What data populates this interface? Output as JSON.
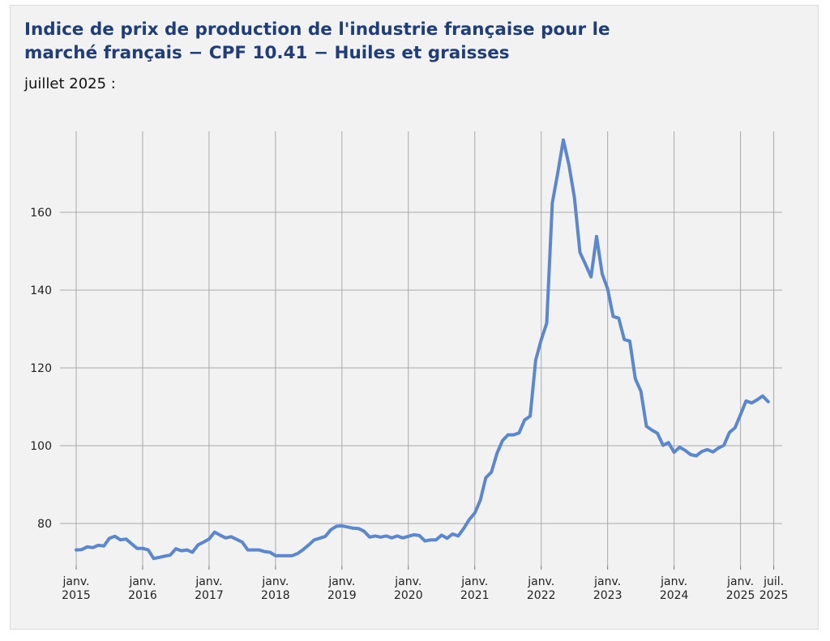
{
  "header": {
    "title": "Indice de prix de production de l'industrie française pour le marché français − CPF 10.41 − Huiles et graisses",
    "subtitle": "juillet 2025 :"
  },
  "chart_data": {
    "type": "line",
    "title": "Indice de prix de production de l'industrie française pour le marché français − CPF 10.41 − Huiles et graisses",
    "subtitle": "juillet 2025 :",
    "xlabel": "",
    "ylabel": "",
    "ylim": [
      68,
      170
    ],
    "y_ticks": [
      80,
      100,
      120,
      140,
      160
    ],
    "x_ticks": [
      {
        "date": "2015-01",
        "line1": "janv.",
        "line2": "2015"
      },
      {
        "date": "2016-01",
        "line1": "janv.",
        "line2": "2016"
      },
      {
        "date": "2017-01",
        "line1": "janv.",
        "line2": "2017"
      },
      {
        "date": "2018-01",
        "line1": "janv.",
        "line2": "2018"
      },
      {
        "date": "2019-01",
        "line1": "janv.",
        "line2": "2019"
      },
      {
        "date": "2020-01",
        "line1": "janv.",
        "line2": "2020"
      },
      {
        "date": "2021-01",
        "line1": "janv.",
        "line2": "2021"
      },
      {
        "date": "2022-01",
        "line1": "janv.",
        "line2": "2022"
      },
      {
        "date": "2023-01",
        "line1": "janv.",
        "line2": "2023"
      },
      {
        "date": "2024-01",
        "line1": "janv.",
        "line2": "2024"
      },
      {
        "date": "2025-01",
        "line1": "janv.",
        "line2": "2025"
      },
      {
        "date": "2025-07",
        "line1": "juil.",
        "line2": "2025"
      }
    ],
    "grid": true,
    "line_color": "#5b87d0",
    "series": [
      {
        "name": "",
        "points": [
          [
            "2015-01",
            73.2
          ],
          [
            "2015-02",
            73.3
          ],
          [
            "2015-03",
            74.0
          ],
          [
            "2015-04",
            73.8
          ],
          [
            "2015-05",
            74.4
          ],
          [
            "2015-06",
            74.2
          ],
          [
            "2015-07",
            76.2
          ],
          [
            "2015-08",
            76.7
          ],
          [
            "2015-09",
            75.8
          ],
          [
            "2015-10",
            76.0
          ],
          [
            "2015-11",
            74.8
          ],
          [
            "2015-12",
            73.6
          ],
          [
            "2016-01",
            73.6
          ],
          [
            "2016-02",
            73.2
          ],
          [
            "2016-03",
            71.0
          ],
          [
            "2016-04",
            71.3
          ],
          [
            "2016-05",
            71.6
          ],
          [
            "2016-06",
            71.9
          ],
          [
            "2016-07",
            73.5
          ],
          [
            "2016-08",
            73.0
          ],
          [
            "2016-09",
            73.2
          ],
          [
            "2016-10",
            72.6
          ],
          [
            "2016-11",
            74.5
          ],
          [
            "2016-12",
            75.2
          ],
          [
            "2017-01",
            76.0
          ],
          [
            "2017-02",
            77.8
          ],
          [
            "2017-03",
            77.0
          ],
          [
            "2017-04",
            76.3
          ],
          [
            "2017-05",
            76.6
          ],
          [
            "2017-06",
            75.9
          ],
          [
            "2017-07",
            75.2
          ],
          [
            "2017-08",
            73.2
          ],
          [
            "2017-09",
            73.2
          ],
          [
            "2017-10",
            73.2
          ],
          [
            "2017-11",
            72.8
          ],
          [
            "2017-12",
            72.6
          ],
          [
            "2018-01",
            71.7
          ],
          [
            "2018-02",
            71.7
          ],
          [
            "2018-03",
            71.7
          ],
          [
            "2018-04",
            71.7
          ],
          [
            "2018-05",
            72.3
          ],
          [
            "2018-06",
            73.3
          ],
          [
            "2018-07",
            74.5
          ],
          [
            "2018-08",
            75.8
          ],
          [
            "2018-09",
            76.2
          ],
          [
            "2018-10",
            76.7
          ],
          [
            "2018-11",
            78.4
          ],
          [
            "2018-12",
            79.3
          ],
          [
            "2019-01",
            79.4
          ],
          [
            "2019-02",
            79.1
          ],
          [
            "2019-03",
            78.8
          ],
          [
            "2019-04",
            78.7
          ],
          [
            "2019-05",
            78.0
          ],
          [
            "2019-06",
            76.5
          ],
          [
            "2019-07",
            76.8
          ],
          [
            "2019-08",
            76.5
          ],
          [
            "2019-09",
            76.8
          ],
          [
            "2019-10",
            76.3
          ],
          [
            "2019-11",
            76.8
          ],
          [
            "2019-12",
            76.3
          ],
          [
            "2020-01",
            76.7
          ],
          [
            "2020-02",
            77.1
          ],
          [
            "2020-03",
            76.9
          ],
          [
            "2020-04",
            75.5
          ],
          [
            "2020-05",
            75.8
          ],
          [
            "2020-06",
            75.8
          ],
          [
            "2020-07",
            77.0
          ],
          [
            "2020-08",
            76.2
          ],
          [
            "2020-09",
            77.3
          ],
          [
            "2020-10",
            76.8
          ],
          [
            "2020-11",
            78.7
          ],
          [
            "2020-12",
            81.0
          ],
          [
            "2021-01",
            82.7
          ],
          [
            "2021-02",
            86.0
          ],
          [
            "2021-03",
            91.8
          ],
          [
            "2021-04",
            93.2
          ],
          [
            "2021-05",
            98.0
          ],
          [
            "2021-06",
            101.3
          ],
          [
            "2021-07",
            102.8
          ],
          [
            "2021-08",
            102.8
          ],
          [
            "2021-09",
            103.3
          ],
          [
            "2021-10",
            106.6
          ],
          [
            "2021-11",
            107.6
          ],
          [
            "2021-12",
            122.0
          ],
          [
            "2022-01",
            127.2
          ],
          [
            "2022-02",
            131.5
          ],
          [
            "2022-03",
            162.4
          ],
          [
            "2022-04",
            170.2
          ],
          [
            "2022-05",
            178.6
          ],
          [
            "2022-06",
            172.2
          ],
          [
            "2022-07",
            163.8
          ],
          [
            "2022-08",
            149.7
          ],
          [
            "2022-09",
            146.6
          ],
          [
            "2022-10",
            143.4
          ],
          [
            "2022-11",
            153.8
          ],
          [
            "2022-12",
            144.2
          ],
          [
            "2023-01",
            140.3
          ],
          [
            "2023-02",
            133.2
          ],
          [
            "2023-03",
            132.8
          ],
          [
            "2023-04",
            127.3
          ],
          [
            "2023-05",
            126.9
          ],
          [
            "2023-06",
            117.2
          ],
          [
            "2023-07",
            114.0
          ],
          [
            "2023-08",
            105.0
          ],
          [
            "2023-09",
            104.0
          ],
          [
            "2023-10",
            103.2
          ],
          [
            "2023-11",
            100.1
          ],
          [
            "2023-12",
            100.8
          ],
          [
            "2024-01",
            98.3
          ],
          [
            "2024-02",
            99.6
          ],
          [
            "2024-03",
            98.8
          ],
          [
            "2024-04",
            97.7
          ],
          [
            "2024-05",
            97.4
          ],
          [
            "2024-06",
            98.5
          ],
          [
            "2024-07",
            99.0
          ],
          [
            "2024-08",
            98.4
          ],
          [
            "2024-09",
            99.4
          ],
          [
            "2024-10",
            100.1
          ],
          [
            "2024-11",
            103.4
          ],
          [
            "2024-12",
            104.6
          ],
          [
            "2025-01",
            108.0
          ],
          [
            "2025-02",
            111.5
          ],
          [
            "2025-03",
            111.0
          ],
          [
            "2025-04",
            111.8
          ],
          [
            "2025-05",
            112.8
          ],
          [
            "2025-06",
            111.3
          ]
        ]
      }
    ]
  }
}
